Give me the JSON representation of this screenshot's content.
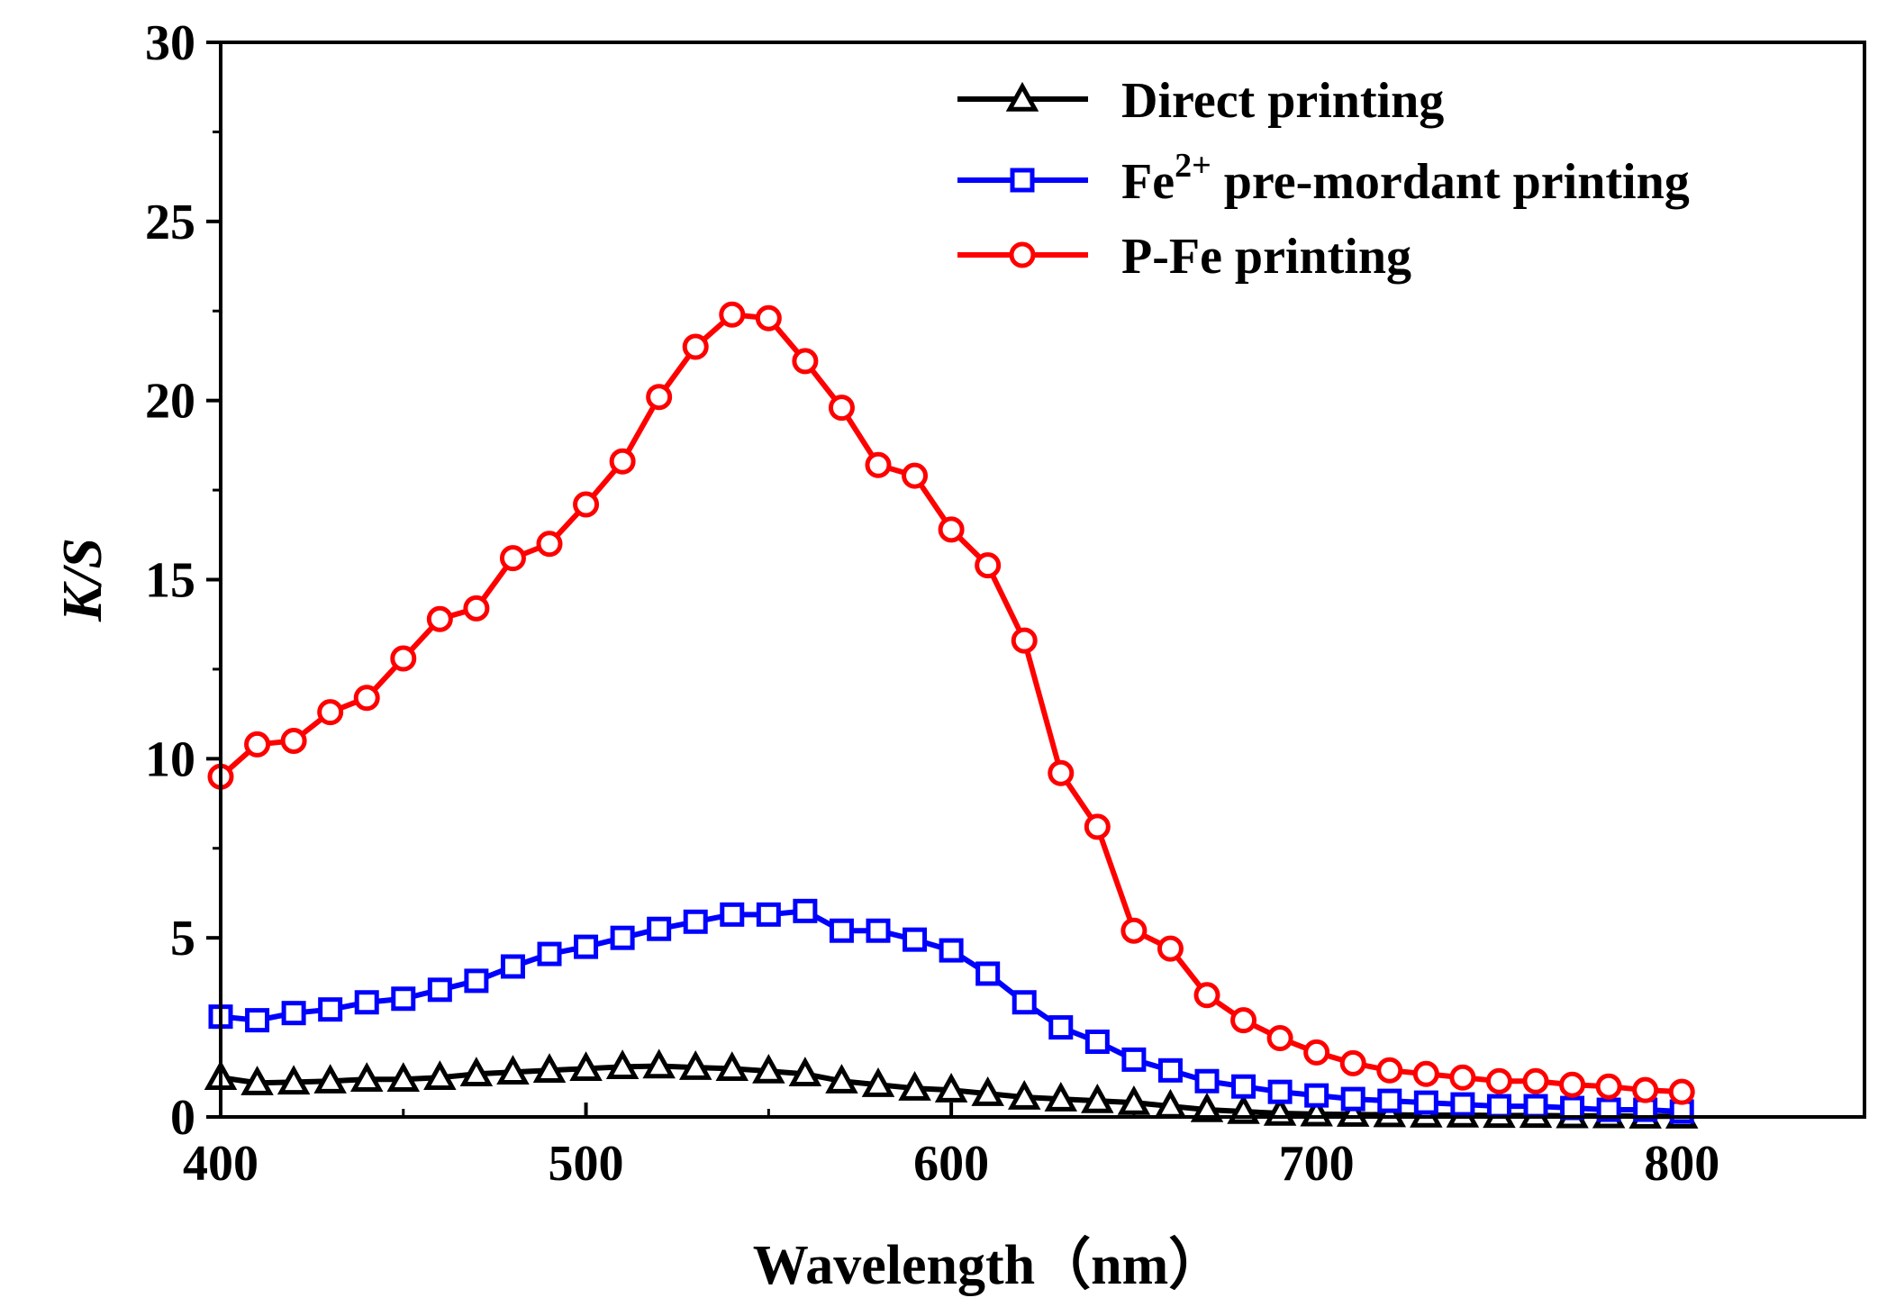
{
  "chart_data": {
    "type": "line",
    "xlabel": "Wavelength（nm）",
    "ylabel": "K/S",
    "xlim": [
      400,
      850
    ],
    "ylim": [
      0,
      30
    ],
    "x_ticks": [
      400,
      500,
      600,
      700,
      800
    ],
    "y_ticks": [
      0,
      5,
      10,
      15,
      20,
      25,
      30
    ],
    "legend_position": "top-right",
    "grid": false,
    "x": [
      400,
      410,
      420,
      430,
      440,
      450,
      460,
      470,
      480,
      490,
      500,
      510,
      520,
      530,
      540,
      550,
      560,
      570,
      580,
      590,
      600,
      610,
      620,
      630,
      640,
      650,
      660,
      670,
      680,
      690,
      700,
      710,
      720,
      730,
      740,
      750,
      760,
      770,
      780,
      790,
      800
    ],
    "series": [
      {
        "name": "Direct printing",
        "name_main": "Direct printing",
        "name_sup": "",
        "name_rest": "",
        "color": "#000000",
        "marker": "triangle",
        "values": [
          1.1,
          0.95,
          0.97,
          1.0,
          1.05,
          1.05,
          1.1,
          1.2,
          1.25,
          1.3,
          1.35,
          1.4,
          1.42,
          1.38,
          1.35,
          1.28,
          1.2,
          1.0,
          0.9,
          0.8,
          0.75,
          0.65,
          0.55,
          0.5,
          0.45,
          0.4,
          0.3,
          0.2,
          0.15,
          0.1,
          0.08,
          0.07,
          0.06,
          0.05,
          0.05,
          0.04,
          0.04,
          0.03,
          0.03,
          0.02,
          0.02
        ]
      },
      {
        "name": "Fe2+ pre-mordant printing",
        "name_main": "Fe",
        "name_sup": "2+",
        "name_rest": " pre-mordant printing",
        "color": "#0000ff",
        "marker": "square",
        "values": [
          2.8,
          2.7,
          2.9,
          3.0,
          3.2,
          3.3,
          3.55,
          3.8,
          4.2,
          4.55,
          4.75,
          5.0,
          5.25,
          5.45,
          5.65,
          5.65,
          5.75,
          5.2,
          5.2,
          4.95,
          4.65,
          4.0,
          3.2,
          2.5,
          2.1,
          1.6,
          1.3,
          1.0,
          0.85,
          0.7,
          0.6,
          0.5,
          0.45,
          0.4,
          0.35,
          0.3,
          0.3,
          0.25,
          0.2,
          0.2,
          0.15
        ]
      },
      {
        "name": "P-Fe printing",
        "name_main": "P-Fe printing",
        "name_sup": "",
        "name_rest": "",
        "color": "#ff0000",
        "marker": "circle",
        "values": [
          9.5,
          10.4,
          10.5,
          11.3,
          11.7,
          12.8,
          13.9,
          14.2,
          15.6,
          16.0,
          17.1,
          18.3,
          20.1,
          21.5,
          22.4,
          22.3,
          21.1,
          19.8,
          18.2,
          17.9,
          16.4,
          15.4,
          13.3,
          9.6,
          8.1,
          5.2,
          4.7,
          3.4,
          2.7,
          2.2,
          1.8,
          1.5,
          1.3,
          1.2,
          1.1,
          1.0,
          1.0,
          0.9,
          0.85,
          0.75,
          0.7
        ]
      }
    ]
  }
}
